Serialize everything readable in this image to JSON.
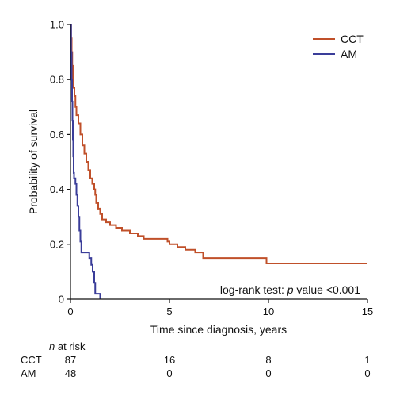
{
  "chart_data": {
    "type": "line",
    "xlabel": "Time since diagnosis, years",
    "ylabel": "Probability of survival",
    "xlim": [
      0,
      15
    ],
    "ylim": [
      0,
      1.0
    ],
    "x_ticks": [
      0,
      5,
      10,
      15
    ],
    "y_ticks": [
      0,
      0.2,
      0.4,
      0.6,
      0.8,
      1.0
    ],
    "y_tick_labels": [
      "0",
      "0.2",
      "0.4",
      "0.6",
      "0.8",
      "1.0"
    ],
    "grid": false,
    "legend": "top-right",
    "annotation": {
      "prefix": "log-rank test: ",
      "p": "p",
      "suffix": " value <0.001"
    },
    "series": [
      {
        "name": "CCT",
        "color": "#c0502a",
        "steps": [
          [
            0,
            1.0
          ],
          [
            0.03,
            0.95
          ],
          [
            0.06,
            0.9
          ],
          [
            0.09,
            0.85
          ],
          [
            0.12,
            0.8
          ],
          [
            0.15,
            0.77
          ],
          [
            0.2,
            0.74
          ],
          [
            0.25,
            0.7
          ],
          [
            0.3,
            0.67
          ],
          [
            0.4,
            0.64
          ],
          [
            0.5,
            0.6
          ],
          [
            0.6,
            0.56
          ],
          [
            0.7,
            0.53
          ],
          [
            0.8,
            0.5
          ],
          [
            0.9,
            0.47
          ],
          [
            1.0,
            0.44
          ],
          [
            1.1,
            0.42
          ],
          [
            1.2,
            0.4
          ],
          [
            1.25,
            0.38
          ],
          [
            1.3,
            0.35
          ],
          [
            1.4,
            0.33
          ],
          [
            1.5,
            0.31
          ],
          [
            1.6,
            0.29
          ],
          [
            1.8,
            0.28
          ],
          [
            2.0,
            0.27
          ],
          [
            2.3,
            0.26
          ],
          [
            2.6,
            0.25
          ],
          [
            3.0,
            0.24
          ],
          [
            3.4,
            0.23
          ],
          [
            3.7,
            0.22
          ],
          [
            4.9,
            0.21
          ],
          [
            5.0,
            0.2
          ],
          [
            5.4,
            0.19
          ],
          [
            5.8,
            0.18
          ],
          [
            6.3,
            0.17
          ],
          [
            6.7,
            0.15
          ],
          [
            9.9,
            0.13
          ],
          [
            15,
            0.13
          ]
        ]
      },
      {
        "name": "AM",
        "color": "#3a3d99",
        "steps": [
          [
            0,
            1.0
          ],
          [
            0.03,
            0.9
          ],
          [
            0.06,
            0.8
          ],
          [
            0.08,
            0.72
          ],
          [
            0.1,
            0.65
          ],
          [
            0.12,
            0.58
          ],
          [
            0.14,
            0.52
          ],
          [
            0.16,
            0.46
          ],
          [
            0.18,
            0.44
          ],
          [
            0.25,
            0.42
          ],
          [
            0.3,
            0.38
          ],
          [
            0.35,
            0.34
          ],
          [
            0.4,
            0.3
          ],
          [
            0.45,
            0.25
          ],
          [
            0.5,
            0.21
          ],
          [
            0.55,
            0.17
          ],
          [
            0.8,
            0.17
          ],
          [
            0.95,
            0.15
          ],
          [
            1.05,
            0.125
          ],
          [
            1.12,
            0.1
          ],
          [
            1.2,
            0.06
          ],
          [
            1.25,
            0.02
          ],
          [
            1.5,
            0.02
          ],
          [
            1.5,
            0
          ]
        ]
      }
    ],
    "risk_table": {
      "title_italic": "n",
      "title_rest": " at risk",
      "times": [
        0,
        5,
        10,
        15
      ],
      "rows": [
        {
          "label": "CCT",
          "values": [
            "87",
            "16",
            "8",
            "1"
          ]
        },
        {
          "label": "AM",
          "values": [
            "48",
            "0",
            "0",
            "0"
          ]
        }
      ]
    }
  }
}
